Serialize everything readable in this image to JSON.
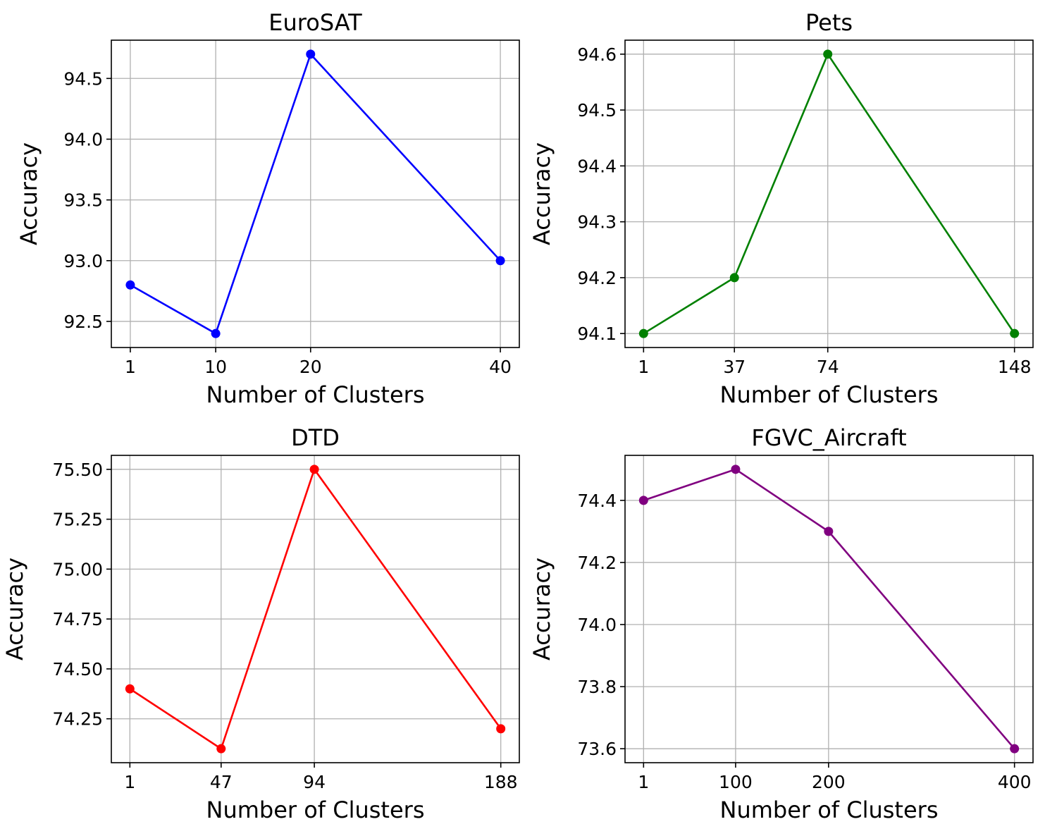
{
  "chart_data": [
    {
      "type": "line",
      "title": "EuroSAT",
      "xlabel": "Number of Clusters",
      "ylabel": "Accuracy",
      "x": [
        1,
        10,
        20,
        40
      ],
      "xticks": [
        "1",
        "10",
        "20",
        "40"
      ],
      "series": [
        {
          "values": [
            92.8,
            92.4,
            94.7,
            93.0
          ],
          "color": "#0000ff"
        }
      ],
      "yticks": [
        92.5,
        93.0,
        93.5,
        94.0,
        94.5
      ],
      "ytick_labels": [
        "92.5",
        "93.0",
        "93.5",
        "94.0",
        "94.5"
      ],
      "xlim": [
        -1,
        42
      ],
      "ylim": [
        92.285,
        94.815
      ],
      "grid": true
    },
    {
      "type": "line",
      "title": "Pets",
      "xlabel": "Number of Clusters",
      "ylabel": "Accuracy",
      "x": [
        1,
        37,
        74,
        148
      ],
      "xticks": [
        "1",
        "37",
        "74",
        "148"
      ],
      "series": [
        {
          "values": [
            94.1,
            94.2,
            94.6,
            94.1
          ],
          "color": "#008000"
        }
      ],
      "yticks": [
        94.1,
        94.2,
        94.3,
        94.4,
        94.5,
        94.6
      ],
      "ytick_labels": [
        "94.1",
        "94.2",
        "94.3",
        "94.4",
        "94.5",
        "94.6"
      ],
      "xlim": [
        -6.35,
        155.35
      ],
      "ylim": [
        94.075,
        94.625
      ],
      "grid": true
    },
    {
      "type": "line",
      "title": "DTD",
      "xlabel": "Number of Clusters",
      "ylabel": "Accuracy",
      "x": [
        1,
        47,
        94,
        188
      ],
      "xticks": [
        "1",
        "47",
        "94",
        "188"
      ],
      "series": [
        {
          "values": [
            74.4,
            74.1,
            75.5,
            74.2
          ],
          "color": "#ff0000"
        }
      ],
      "yticks": [
        74.25,
        74.5,
        74.75,
        75.0,
        75.25,
        75.5
      ],
      "ytick_labels": [
        "74.25",
        "74.50",
        "74.75",
        "75.00",
        "75.25",
        "75.50"
      ],
      "xlim": [
        -8.35,
        197.35
      ],
      "ylim": [
        74.03,
        75.57
      ],
      "grid": true
    },
    {
      "type": "line",
      "title": "FGVC_Aircraft",
      "xlabel": "Number of Clusters",
      "ylabel": "Accuracy",
      "x": [
        1,
        100,
        200,
        400
      ],
      "xticks": [
        "1",
        "100",
        "200",
        "400"
      ],
      "series": [
        {
          "values": [
            74.4,
            74.5,
            74.3,
            73.6
          ],
          "color": "#800080"
        }
      ],
      "yticks": [
        73.6,
        73.8,
        74.0,
        74.2,
        74.4
      ],
      "ytick_labels": [
        "73.6",
        "73.8",
        "74.0",
        "74.2",
        "74.4"
      ],
      "xlim": [
        -18.95,
        419.95
      ],
      "ylim": [
        73.555,
        74.545
      ],
      "grid": true
    }
  ]
}
